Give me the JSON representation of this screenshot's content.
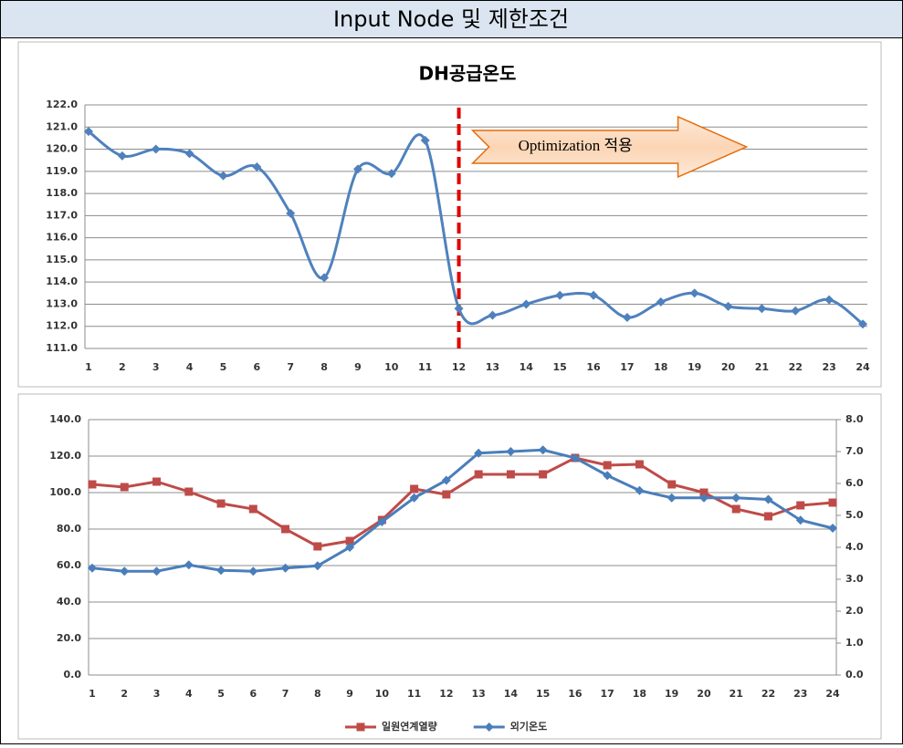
{
  "header": {
    "title": "Input Node 및 제한조건"
  },
  "chart_data": [
    {
      "type": "line",
      "title": "DH공급온도",
      "categories": [
        "1",
        "2",
        "3",
        "4",
        "5",
        "6",
        "7",
        "8",
        "9",
        "10",
        "11",
        "12",
        "13",
        "14",
        "15",
        "16",
        "17",
        "18",
        "19",
        "20",
        "21",
        "22",
        "23",
        "24"
      ],
      "series": [
        {
          "name": null,
          "color": "#4f81bd",
          "marker": "diamond",
          "smooth": true,
          "values": [
            120.8,
            119.7,
            120.0,
            119.8,
            118.8,
            119.2,
            117.1,
            114.2,
            119.1,
            118.9,
            120.4,
            112.8,
            112.5,
            113.0,
            113.4,
            113.4,
            112.4,
            113.1,
            113.5,
            112.9,
            112.8,
            112.7,
            113.2,
            112.1
          ]
        }
      ],
      "ylim": [
        111,
        122
      ],
      "yticks": [
        {
          "value": 111,
          "label": "111.0"
        },
        {
          "value": 112,
          "label": "112.0"
        },
        {
          "value": 113,
          "label": "113.0"
        },
        {
          "value": 114,
          "label": "114.0"
        },
        {
          "value": 115,
          "label": "115.0"
        },
        {
          "value": 116,
          "label": "116.0"
        },
        {
          "value": 117,
          "label": "117.0"
        },
        {
          "value": 118,
          "label": "118.0"
        },
        {
          "value": 119,
          "label": "119.0"
        },
        {
          "value": 120,
          "label": "120.0"
        },
        {
          "value": 121,
          "label": "121.0"
        },
        {
          "value": 122,
          "label": "122.0"
        }
      ],
      "grid": true,
      "annotation": {
        "text": "Optimization 적용",
        "at": "12"
      }
    },
    {
      "type": "line",
      "categories": [
        "1",
        "2",
        "3",
        "4",
        "5",
        "6",
        "7",
        "8",
        "9",
        "10",
        "11",
        "12",
        "13",
        "14",
        "15",
        "16",
        "17",
        "18",
        "19",
        "20",
        "21",
        "22",
        "23",
        "24"
      ],
      "series": [
        {
          "name": "일원연계열량",
          "color": "#be4b48",
          "marker": "square",
          "axis": "y",
          "values": [
            104.5,
            103,
            106,
            100.5,
            94,
            91,
            80,
            70.5,
            73.5,
            85,
            102,
            99,
            110,
            110,
            110,
            119,
            115,
            115.5,
            104.5,
            100,
            91,
            87,
            93,
            94.5
          ]
        },
        {
          "name": "외기온도",
          "color": "#4a7ebb",
          "marker": "diamond",
          "axis": "y2",
          "values": [
            3.35,
            3.25,
            3.25,
            3.45,
            3.28,
            3.25,
            3.35,
            3.42,
            4.0,
            4.8,
            5.55,
            6.1,
            6.95,
            7.0,
            7.05,
            6.8,
            6.25,
            5.78,
            5.55,
            5.55,
            5.55,
            5.5,
            4.85,
            4.6
          ]
        }
      ],
      "ylim": [
        0,
        140
      ],
      "yticks": [
        {
          "value": 0,
          "label": "0.0"
        },
        {
          "value": 20,
          "label": "20.0"
        },
        {
          "value": 40,
          "label": "40.0"
        },
        {
          "value": 60,
          "label": "60.0"
        },
        {
          "value": 80,
          "label": "80.0"
        },
        {
          "value": 100,
          "label": "100.0"
        },
        {
          "value": 120,
          "label": "120.0"
        },
        {
          "value": 140,
          "label": "140.0"
        }
      ],
      "y2lim": [
        0,
        8
      ],
      "y2ticks": [
        {
          "value": 0,
          "label": "0.0"
        },
        {
          "value": 1,
          "label": "1.0"
        },
        {
          "value": 2,
          "label": "2.0"
        },
        {
          "value": 3,
          "label": "3.0"
        },
        {
          "value": 4,
          "label": "4.0"
        },
        {
          "value": 5,
          "label": "5.0"
        },
        {
          "value": 6,
          "label": "6.0"
        },
        {
          "value": 7,
          "label": "7.0"
        },
        {
          "value": 8,
          "label": "8.0"
        }
      ],
      "grid": true,
      "legend": "bottom"
    }
  ]
}
